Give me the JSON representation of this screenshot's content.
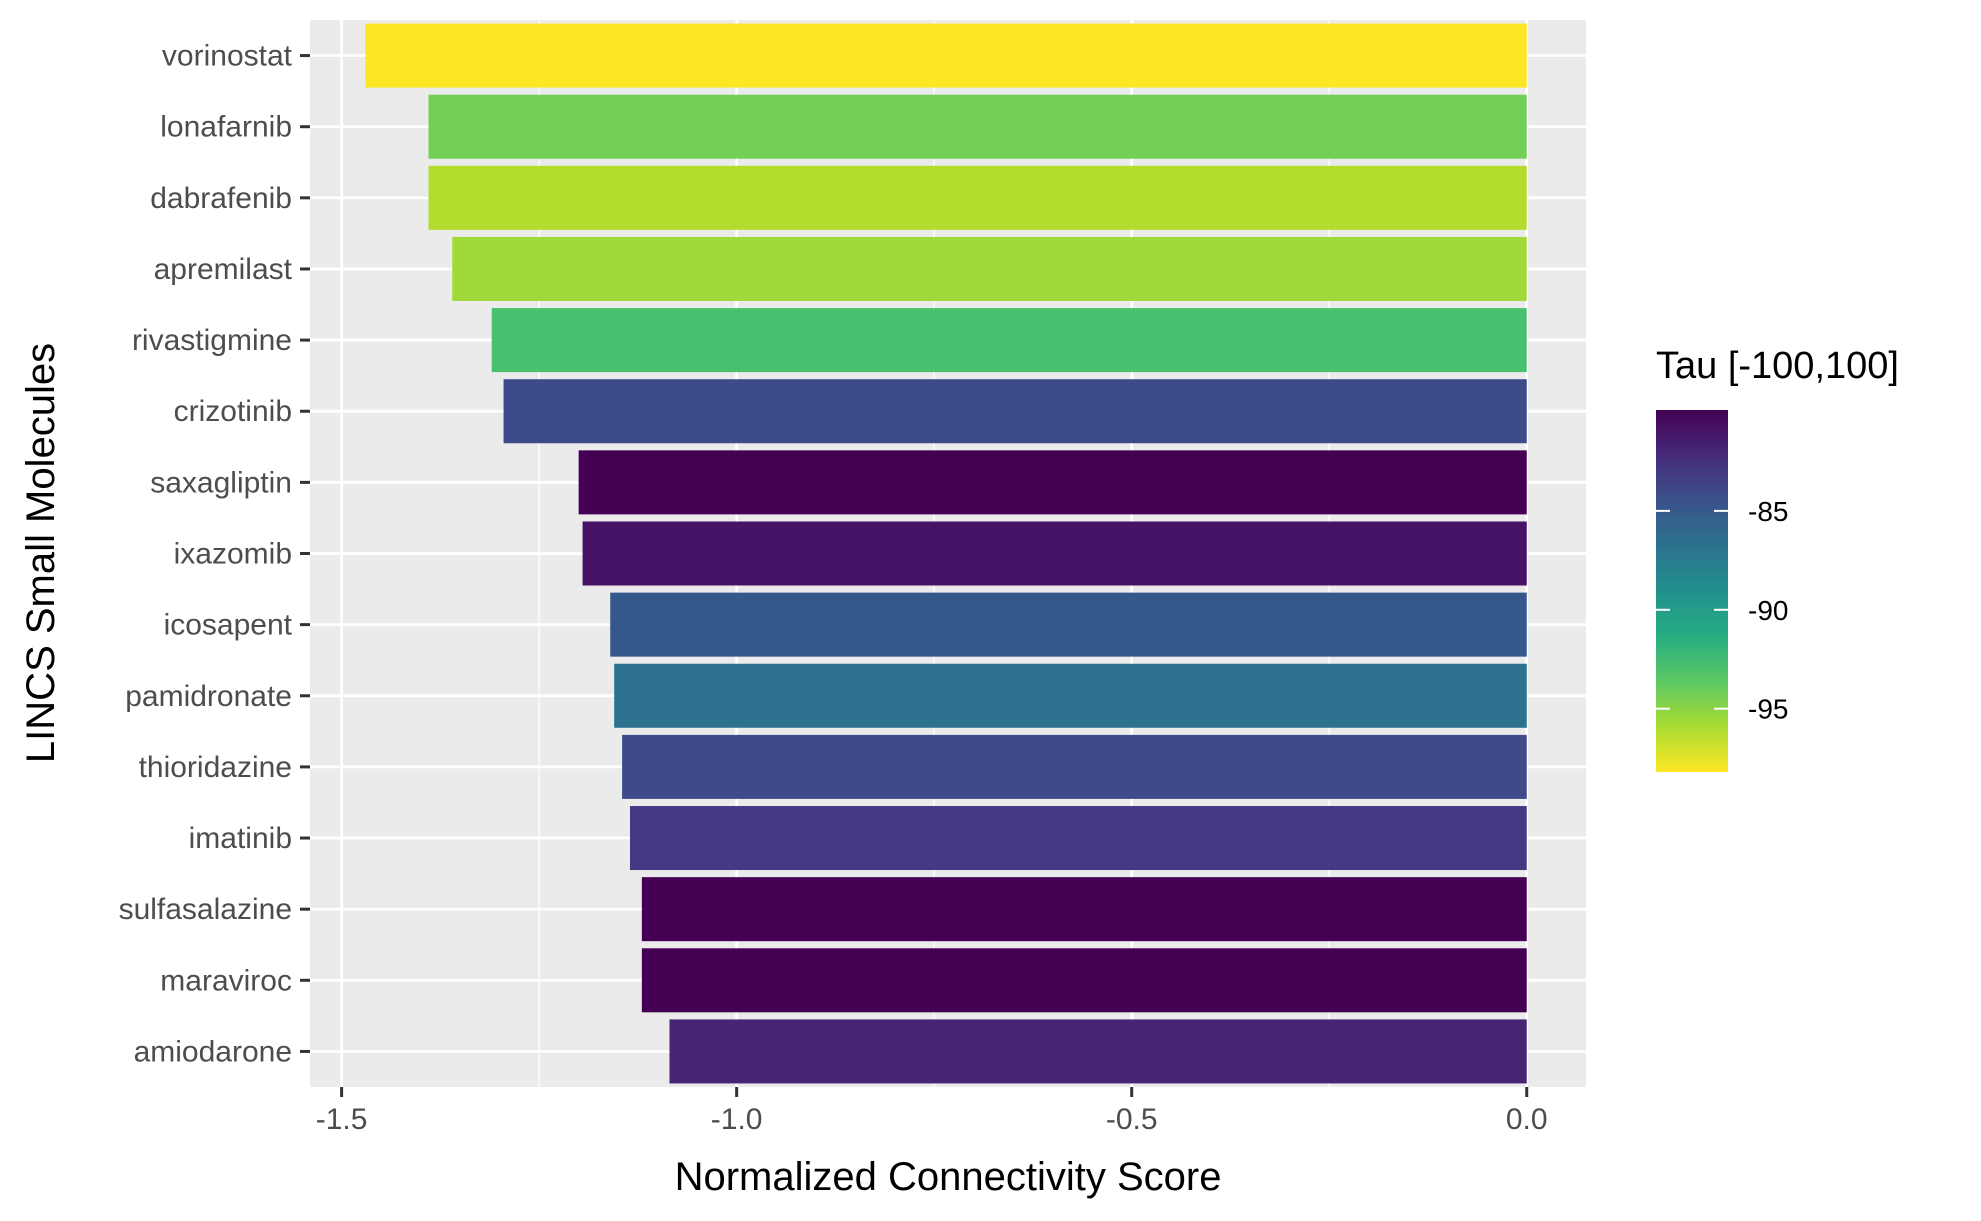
{
  "chart_data": {
    "type": "bar",
    "orientation": "horizontal",
    "xlabel": "Normalized Connectivity Score",
    "ylabel": "LINCS Small Molecules",
    "xlim": [
      -1.54,
      0.075
    ],
    "xticks": [
      -1.5,
      -1.0,
      -0.5,
      0.0
    ],
    "xtick_labels": [
      "-1.5",
      "-1.0",
      "-0.5",
      "0.0"
    ],
    "grid": true,
    "categories": [
      "vorinostat",
      "lonafarnib",
      "dabrafenib",
      "apremilast",
      "rivastigmine",
      "crizotinib",
      "saxagliptin",
      "ixazomib",
      "icosapent",
      "pamidronate",
      "thioridazine",
      "imatinib",
      "sulfasalazine",
      "maraviroc",
      "amiodarone"
    ],
    "values": [
      -1.47,
      -1.39,
      -1.39,
      -1.36,
      -1.31,
      -1.295,
      -1.2,
      -1.195,
      -1.16,
      -1.155,
      -1.145,
      -1.135,
      -1.12,
      -1.12,
      -1.085
    ],
    "tau": [
      -98.0,
      -94.2,
      -96.2,
      -95.8,
      -93.2,
      -83.6,
      -79.9,
      -80.8,
      -86.0,
      -88.5,
      -83.5,
      -82.4,
      -79.9,
      -79.9,
      -81.2
    ],
    "colors": [
      "#fde725",
      "#73d056",
      "#b2dd2d",
      "#9fda3a",
      "#48c16e",
      "#3c4c8a",
      "#440154",
      "#461366",
      "#35588c",
      "#2c718e",
      "#3e4a89",
      "#463883",
      "#440154",
      "#440154",
      "#482475"
    ],
    "legend": {
      "title": "Tau [-100,100]",
      "placement": "right",
      "range": [
        -98.2,
        -79.9
      ],
      "ticks": [
        -85,
        -90,
        -95
      ],
      "tick_labels": [
        "-85",
        "-90",
        "-95"
      ],
      "gradient": [
        "#440154",
        "#472a7a",
        "#3b528b",
        "#2c728e",
        "#21908d",
        "#27ad81",
        "#5cc863",
        "#aadc32",
        "#fde725"
      ]
    },
    "panel_background": "#ebebeb",
    "grid_color": "#ffffff"
  }
}
